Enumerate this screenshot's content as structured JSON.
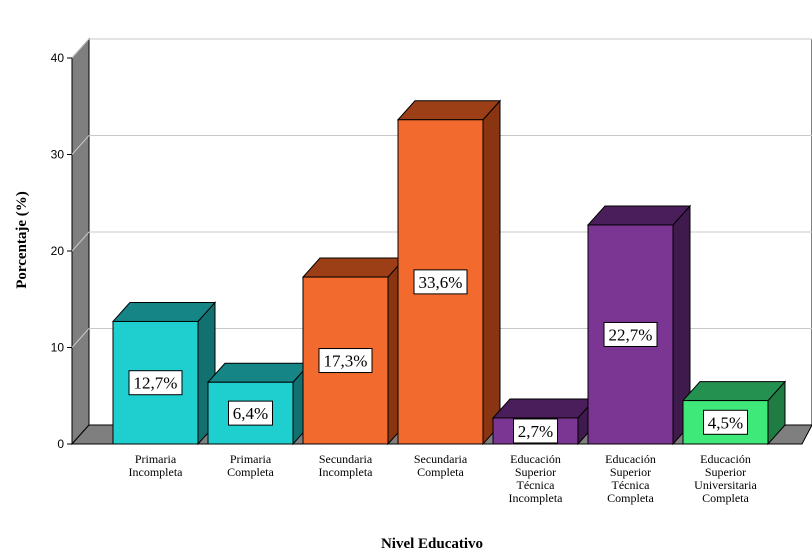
{
  "chart_data": {
    "type": "bar",
    "xlabel": "Nivel Educativo",
    "ylabel": "Porcentaje (%)",
    "ylim": [
      0,
      40
    ],
    "yticks": [
      0,
      10,
      20,
      30,
      40
    ],
    "grid": true,
    "categories": [
      [
        "Primaria",
        "Incompleta"
      ],
      [
        "Primaria",
        "Completa"
      ],
      [
        "Secundaria",
        "Incompleta"
      ],
      [
        "Secundaria",
        "Completa"
      ],
      [
        "Educación",
        "Superior",
        "Técnica",
        "Incompleta"
      ],
      [
        "Educación",
        "Superior",
        "Técnica",
        "Completa"
      ],
      [
        "Educación",
        "Superior",
        "Universitaria",
        "Completa"
      ]
    ],
    "values": [
      12.7,
      6.4,
      17.3,
      33.6,
      2.7,
      22.7,
      4.5
    ],
    "data_labels": [
      "12,7%",
      "6,4%",
      "17,3%",
      "33,6%",
      "2,7%",
      "22,7%",
      "4,5%"
    ],
    "colors": [
      {
        "front": "#1fcfcf",
        "top": "#168585",
        "side": "#127070"
      },
      {
        "front": "#1fcfcf",
        "top": "#168585",
        "side": "#127070"
      },
      {
        "front": "#f26a2d",
        "top": "#9c3f17",
        "side": "#8a3512"
      },
      {
        "front": "#f26a2d",
        "top": "#9c3f17",
        "side": "#8a3512"
      },
      {
        "front": "#7b3592",
        "top": "#4a1e5a",
        "side": "#3f1a4d"
      },
      {
        "front": "#7b3592",
        "top": "#4a1e5a",
        "side": "#3f1a4d"
      },
      {
        "front": "#3ee879",
        "top": "#249150",
        "side": "#1f7d44"
      }
    ]
  }
}
